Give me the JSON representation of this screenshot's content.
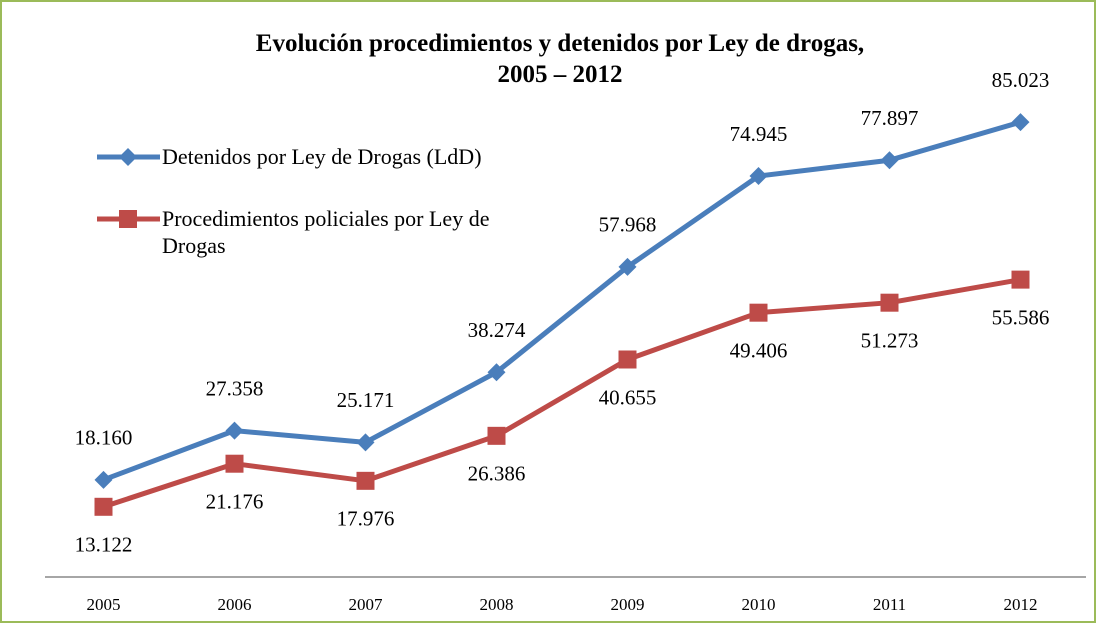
{
  "chart_data": {
    "type": "line",
    "title": "Evolución procedimientos y detenidos por Ley de drogas,\n2005 – 2012",
    "categories": [
      "2005",
      "2006",
      "2007",
      "2008",
      "2009",
      "2010",
      "2011",
      "2012"
    ],
    "series": [
      {
        "name": "Detenidos por Ley de Drogas (LdD)",
        "color": "#4a7ebb",
        "marker": "diamond",
        "values": [
          18160,
          27358,
          25171,
          38274,
          57968,
          74945,
          77897,
          85023
        ],
        "value_labels": [
          "18.160",
          "27.358",
          "25.171",
          "38.274",
          "57.968",
          "74.945",
          "77.897",
          "85.023"
        ]
      },
      {
        "name": "Procedimientos policiales por Ley de Drogas",
        "color": "#be4b48",
        "marker": "square",
        "values": [
          13122,
          21176,
          17976,
          26386,
          40655,
          49406,
          51273,
          55586
        ],
        "value_labels": [
          "13.122",
          "21.176",
          "17.976",
          "26.386",
          "40.655",
          "49.406",
          "51.273",
          "55.586"
        ]
      }
    ],
    "ylim": [
      0,
      100000
    ],
    "legend": "top-left"
  }
}
